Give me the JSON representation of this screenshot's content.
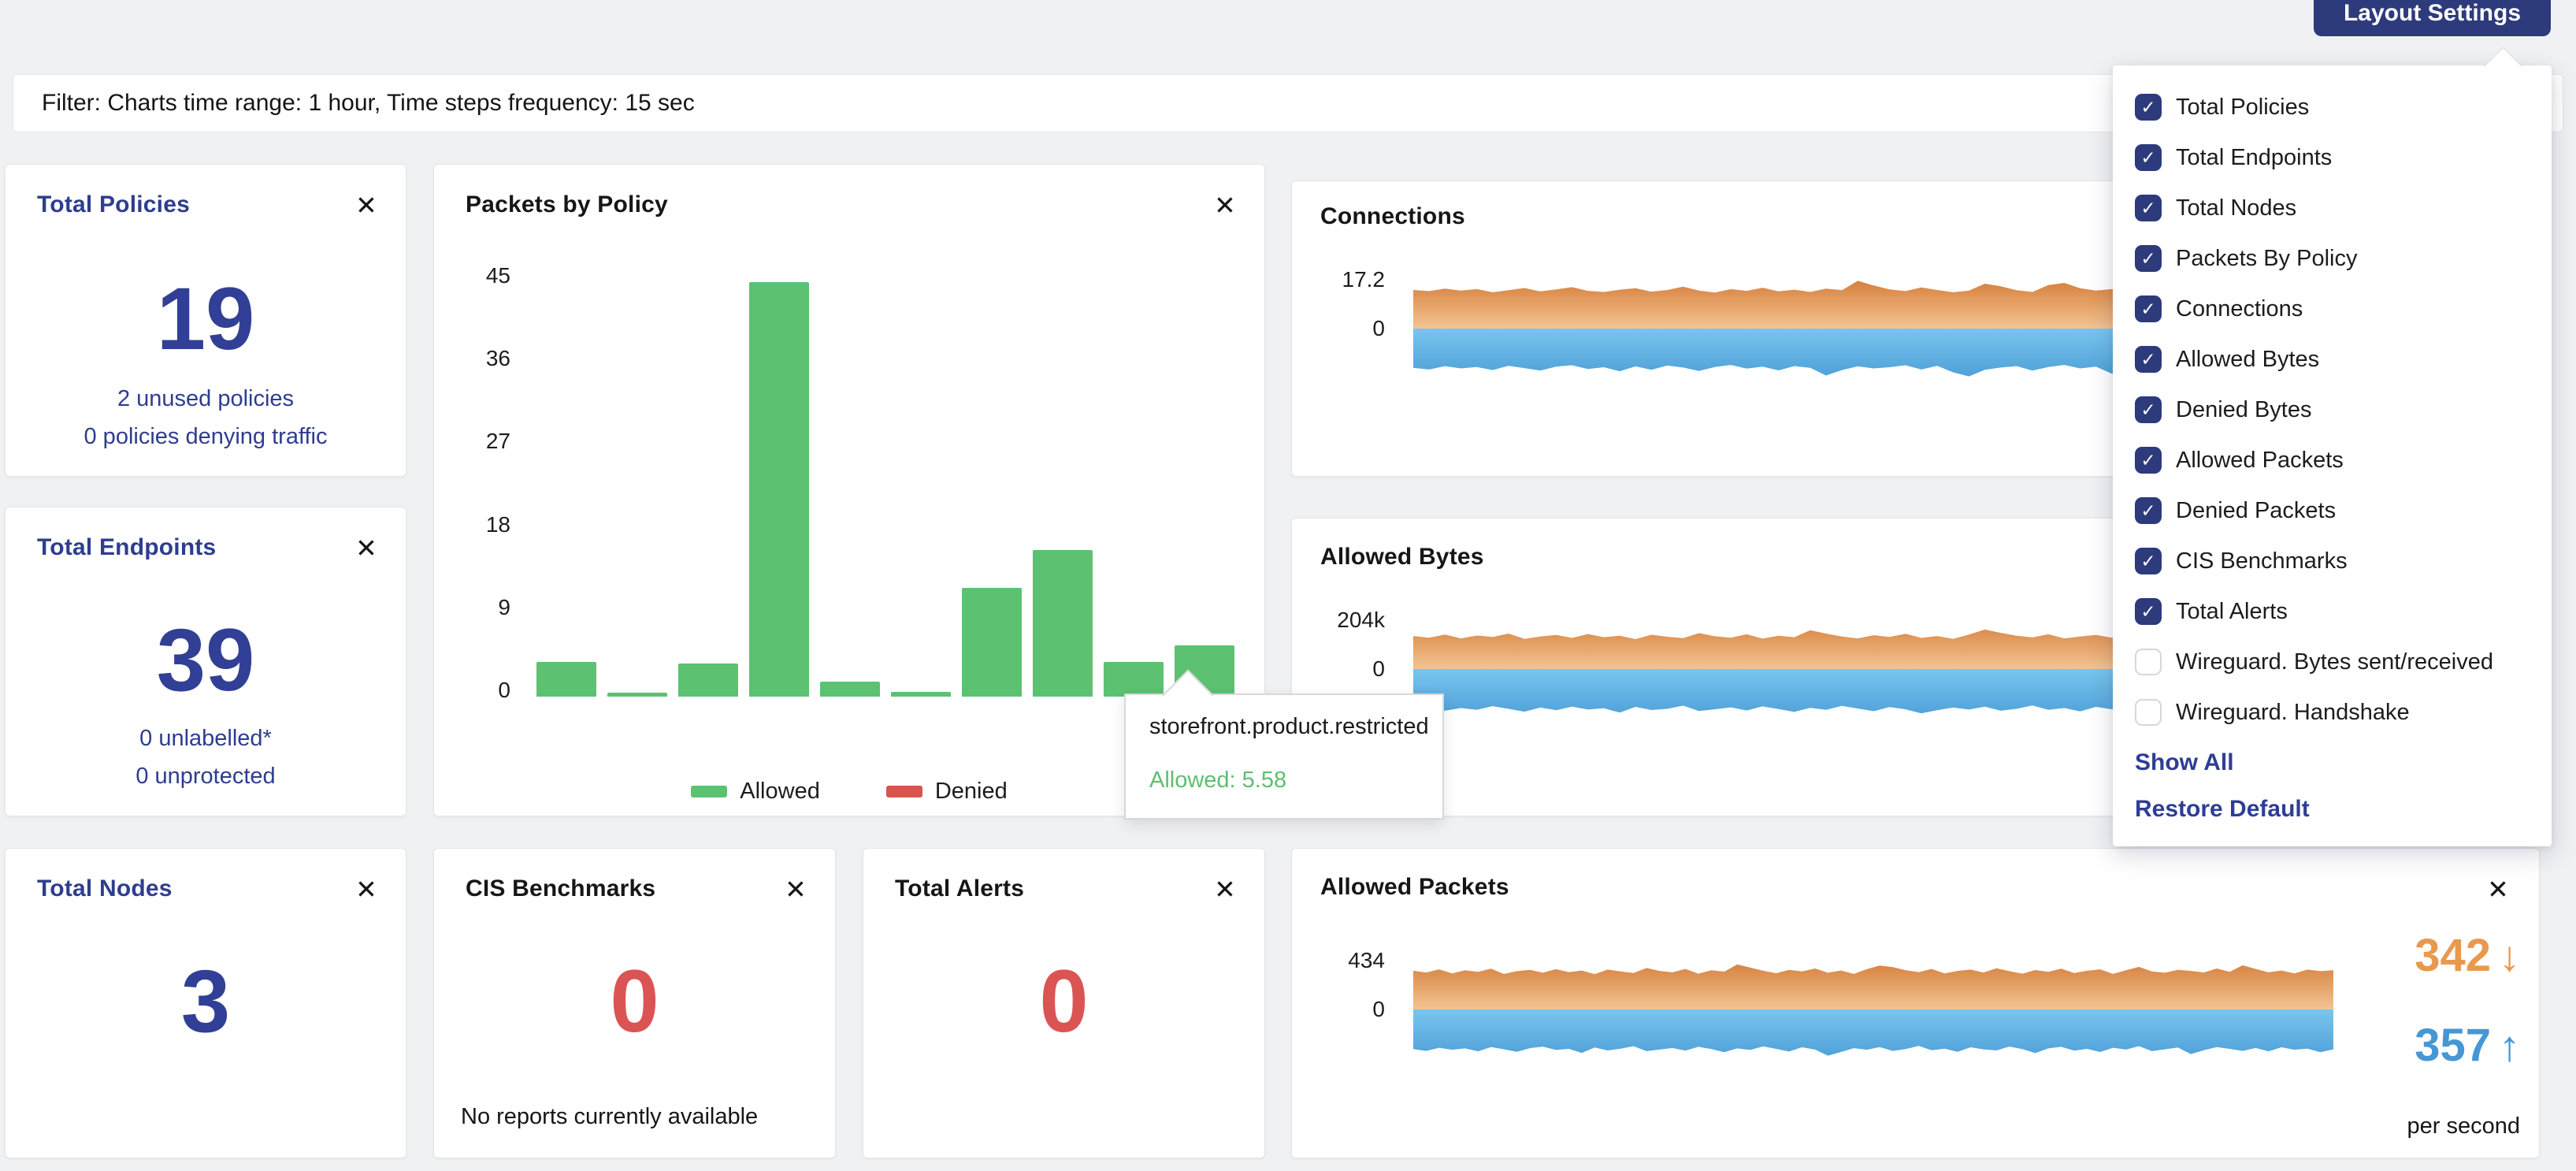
{
  "icons": {
    "close": "✕",
    "check": "✓",
    "arrow_down": "↓",
    "arrow_up": "↑"
  },
  "colors": {
    "navy_button": "#2d3a7c",
    "navy_title": "#2e3d8f",
    "navy_number": "#323f96",
    "red_number": "#db5454",
    "green_bar": "#5cc171",
    "red_legend": "#d9534f",
    "orange_area_top": "#d47a35",
    "orange_area_zero": "#f3c493",
    "blue_area_zero": "#79c5ef",
    "blue_area_bottom": "#4a9cd5",
    "stat_down_orange": "#e9994d",
    "stat_up_blue": "#4697d3",
    "tooltip_green": "#5cbf70",
    "page_bg": "#f0f1f3"
  },
  "filter_bar": {
    "text": "Filter: Charts time range: 1 hour, Time steps frequency: 15 sec"
  },
  "layout_settings": {
    "button_label": "Layout Settings",
    "items": [
      {
        "label": "Total Policies",
        "checked": true
      },
      {
        "label": "Total Endpoints",
        "checked": true
      },
      {
        "label": "Total Nodes",
        "checked": true
      },
      {
        "label": "Packets By Policy",
        "checked": true
      },
      {
        "label": "Connections",
        "checked": true
      },
      {
        "label": "Allowed Bytes",
        "checked": true
      },
      {
        "label": "Denied Bytes",
        "checked": true
      },
      {
        "label": "Allowed Packets",
        "checked": true
      },
      {
        "label": "Denied Packets",
        "checked": true
      },
      {
        "label": "CIS Benchmarks",
        "checked": true
      },
      {
        "label": "Total Alerts",
        "checked": true
      },
      {
        "label": "Wireguard. Bytes sent/received",
        "checked": false
      },
      {
        "label": "Wireguard. Handshake",
        "checked": false
      }
    ],
    "show_all": "Show All",
    "restore_default": "Restore Default"
  },
  "cards": {
    "total_policies": {
      "title": "Total Policies",
      "value": "19",
      "line1": "2 unused policies",
      "line2": "0 policies denying traffic"
    },
    "total_endpoints": {
      "title": "Total Endpoints",
      "value": "39",
      "line1": "0 unlabelled*",
      "line2": "0 unprotected"
    },
    "total_nodes": {
      "title": "Total Nodes",
      "value": "3"
    },
    "cis_benchmarks": {
      "title": "CIS Benchmarks",
      "value": "0",
      "footer": "No reports currently available"
    },
    "total_alerts": {
      "title": "Total Alerts",
      "value": "0"
    },
    "packets_by_policy": {
      "title": "Packets by Policy"
    },
    "connections": {
      "title": "Connections"
    },
    "allowed_bytes": {
      "title": "Allowed Bytes"
    },
    "allowed_packets": {
      "title": "Allowed Packets",
      "stat_down": "342",
      "stat_up": "357",
      "unit": "per second"
    }
  },
  "tooltip": {
    "title": "storefront.product.restricted",
    "line": "Allowed: 5.58"
  },
  "chart_data": [
    {
      "id": "packets_by_policy",
      "type": "bar",
      "title": "Packets by Policy",
      "yticks": [
        0,
        9,
        18,
        27,
        36,
        45
      ],
      "ylim": [
        0,
        45
      ],
      "grid": false,
      "legend_position": "bottom",
      "series": [
        {
          "name": "Allowed",
          "color": "#5cc171",
          "values": [
            3.8,
            0.4,
            3.6,
            45,
            1.6,
            0.5,
            11.8,
            15.9,
            3.8,
            5.58
          ]
        },
        {
          "name": "Denied",
          "color": "#d9534f",
          "values": [
            0,
            0,
            0,
            0,
            0,
            0,
            0,
            0,
            0,
            0
          ]
        }
      ],
      "highlighted_bar_index": 9,
      "tooltip": {
        "label": "storefront.product.restricted",
        "value": "Allowed: 5.58"
      }
    },
    {
      "id": "connections",
      "type": "area",
      "title": "Connections",
      "ymax_label": "17.2",
      "ymax_value": 17.2,
      "zero_label": "0",
      "upper": [
        13.6,
        13.2,
        14.1,
        13.4,
        13.9,
        12.8,
        13.5,
        14.3,
        13.1,
        13.8,
        14.6,
        13.3,
        12.9,
        13.7,
        14.2,
        13.0,
        13.6,
        14.8,
        13.4,
        12.7,
        13.9,
        13.3,
        14.4,
        13.1,
        13.7,
        12.9,
        14.1,
        13.5,
        16.8,
        15.2,
        13.8,
        13.2,
        14.5,
        13.6,
        12.8,
        13.4,
        15.8,
        14.9,
        13.5,
        12.9,
        15.3,
        16.1,
        14.2,
        13.4,
        13.9,
        13.0,
        14.6,
        13.7,
        13.2,
        14.0,
        13.5,
        12.8,
        14.3,
        13.6,
        13.1,
        14.7,
        13.3,
        12.9,
        13.8,
        14.2,
        13.4,
        13.0,
        14.5,
        13.7,
        16.2,
        14.8,
        13.5,
        14.1,
        13.2,
        15.6,
        14.4,
        13.8
      ],
      "lower": [
        -13.8,
        -14.4,
        -13.2,
        -14.0,
        -13.5,
        -14.6,
        -13.1,
        -13.9,
        -14.8,
        -13.4,
        -12.9,
        -14.2,
        -13.6,
        -15.0,
        -13.3,
        -14.5,
        -13.0,
        -13.7,
        -14.9,
        -13.5,
        -12.8,
        -14.1,
        -13.4,
        -14.7,
        -13.2,
        -13.8,
        -16.5,
        -14.6,
        -13.3,
        -14.0,
        -13.6,
        -12.9,
        -14.4,
        -13.1,
        -15.4,
        -16.8,
        -14.5,
        -13.7,
        -13.2,
        -14.8,
        -13.5,
        -12.8,
        -14.0,
        -13.4,
        -15.9,
        -14.3,
        -13.0,
        -13.8,
        -14.6,
        -13.3,
        -12.9,
        -14.1,
        -13.7,
        -15.2,
        -13.4,
        -14.0,
        -13.1,
        -14.5,
        -13.8,
        -12.7,
        -14.3,
        -13.5,
        -16.0,
        -14.7,
        -13.2,
        -13.9,
        -14.4,
        -13.0,
        -13.6,
        -14.2,
        -13.4,
        -13.8
      ]
    },
    {
      "id": "allowed_bytes",
      "type": "area",
      "title": "Allowed Bytes",
      "ymax_label": "204k",
      "ymax_value": 204,
      "unit": "k",
      "zero_label": "0",
      "upper": [
        138,
        131,
        144,
        128,
        140,
        134,
        148,
        126,
        136,
        142,
        130,
        146,
        133,
        139,
        125,
        143,
        135,
        129,
        150,
        137,
        131,
        145,
        127,
        139,
        133,
        162,
        148,
        136,
        128,
        141,
        134,
        147,
        130,
        138,
        126,
        144,
        165,
        151,
        139,
        132,
        145,
        128,
        136,
        142,
        131,
        148,
        135,
        127,
        140,
        133,
        146,
        129,
        137,
        143,
        126,
        139,
        152,
        134,
        128,
        141,
        136,
        130,
        147,
        133,
        158,
        144,
        131,
        138,
        127,
        142,
        135,
        139
      ],
      "lower": [
        -168,
        -159,
        -174,
        -163,
        -170,
        -155,
        -166,
        -178,
        -161,
        -172,
        -157,
        -169,
        -164,
        -182,
        -158,
        -171,
        -166,
        -153,
        -175,
        -168,
        -160,
        -173,
        -156,
        -167,
        -179,
        -162,
        -170,
        -154,
        -165,
        -176,
        -159,
        -168,
        -185,
        -172,
        -161,
        -169,
        -157,
        -174,
        -166,
        -152,
        -170,
        -163,
        -177,
        -158,
        -168,
        -172,
        -155,
        -166,
        -180,
        -162,
        -157,
        -171,
        -164,
        -176,
        -159,
        -167,
        -153,
        -173,
        -168,
        -161,
        -183,
        -170,
        -156,
        -165,
        -172,
        -160,
        -174,
        -158,
        -169,
        -163,
        -177,
        -166
      ]
    },
    {
      "id": "allowed_packets",
      "type": "area",
      "title": "Allowed Packets",
      "ymax_label": "434",
      "ymax_value": 434,
      "zero_label": "0",
      "stats": {
        "down": 342,
        "up": 357,
        "unit": "per second"
      },
      "upper": [
        344,
        328,
        356,
        320,
        348,
        334,
        362,
        316,
        340,
        352,
        326,
        358,
        332,
        346,
        314,
        354,
        338,
        324,
        368,
        342,
        330,
        360,
        318,
        348,
        336,
        400,
        372,
        344,
        322,
        352,
        338,
        364,
        326,
        346,
        316,
        358,
        390,
        376,
        348,
        332,
        360,
        320,
        342,
        354,
        328,
        366,
        340,
        318,
        350,
        334,
        362,
        324,
        344,
        356,
        316,
        348,
        378,
        338,
        326,
        352,
        342,
        328,
        364,
        334,
        392,
        360,
        330,
        346,
        320,
        354,
        340,
        348
      ],
      "lower": [
        -352,
        -368,
        -340,
        -358,
        -346,
        -372,
        -334,
        -354,
        -376,
        -344,
        -330,
        -360,
        -350,
        -386,
        -338,
        -364,
        -348,
        -326,
        -370,
        -356,
        -342,
        -366,
        -332,
        -352,
        -380,
        -346,
        -360,
        -328,
        -350,
        -374,
        -336,
        -356,
        -410,
        -378,
        -344,
        -358,
        -334,
        -368,
        -352,
        -324,
        -362,
        -348,
        -376,
        -336,
        -354,
        -364,
        -330,
        -352,
        -388,
        -346,
        -332,
        -366,
        -350,
        -378,
        -340,
        -356,
        -326,
        -370,
        -354,
        -338,
        -396,
        -362,
        -334,
        -350,
        -368,
        -342,
        -372,
        -336,
        -358,
        -348,
        -380,
        -354
      ]
    }
  ]
}
